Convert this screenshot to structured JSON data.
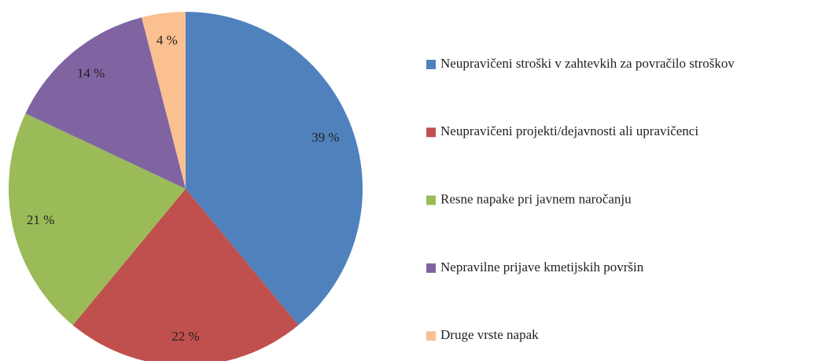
{
  "chart_data": {
    "type": "pie",
    "categories": [
      "Neupravičeni stroški v zahtevkih za povračilo stroškov",
      "Neupravičeni projekti/dejavnosti ali upravičenci",
      "Resne napake pri javnem naročanju",
      "Nepravilne prijave kmetijskih površin",
      "Druge vrste napak"
    ],
    "values": [
      39,
      22,
      21,
      14,
      4
    ],
    "value_labels": [
      "39 %",
      "22 %",
      "21 %",
      "14 %",
      "4 %"
    ],
    "colors": [
      "#4f81bd",
      "#c0504d",
      "#9bbb59",
      "#8064a2",
      "#fac090"
    ],
    "legend": "right"
  }
}
